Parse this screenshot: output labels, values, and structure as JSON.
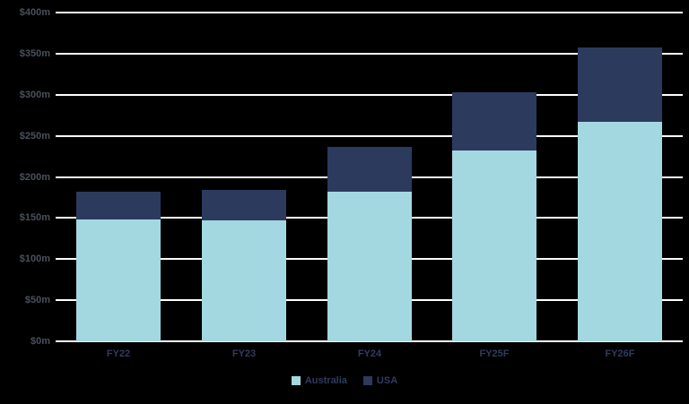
{
  "chart_data": {
    "type": "bar",
    "stacked": true,
    "title": "",
    "xlabel": "",
    "ylabel": "",
    "categories": [
      "FY22",
      "FY23",
      "FY24",
      "FY25F",
      "FY26F"
    ],
    "series": [
      {
        "name": "Australia",
        "color": "#a4d8e0",
        "values": [
          148,
          147,
          182,
          232,
          267
        ]
      },
      {
        "name": "USA",
        "color": "#2c3a5e",
        "values": [
          34,
          37,
          55,
          71,
          90
        ]
      }
    ],
    "totals": [
      182,
      184,
      237,
      303,
      357
    ],
    "ylim": [
      0,
      400
    ],
    "ytick_step": 50,
    "yticks": [
      "$0m",
      "$50m",
      "$100m",
      "$150m",
      "$200m",
      "$250m",
      "$300m",
      "$350m",
      "$400m"
    ],
    "grid": true,
    "gridline_color": "#ffffff",
    "background_color": "#000000",
    "ytick_label_color": "#49505c",
    "xtick_label_color": "#2e3c60",
    "legend_text_color": "#2e3c60",
    "legend_position": "bottom"
  }
}
